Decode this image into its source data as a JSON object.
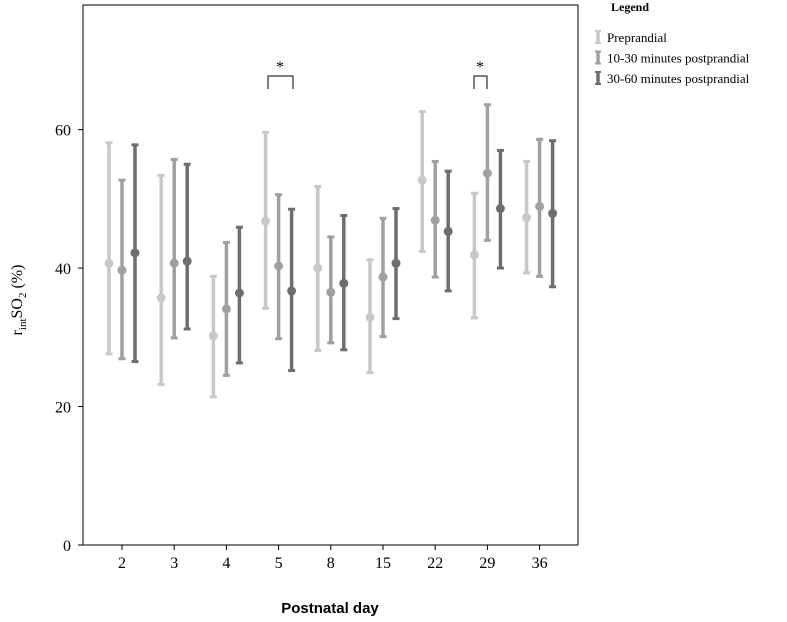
{
  "chart_data": {
    "type": "errorbar",
    "xlabel": "Postnatal day",
    "ylabel": [
      "r",
      "int",
      "SO",
      "2",
      " (%)"
    ],
    "categories": [
      "2",
      "3",
      "4",
      "5",
      "8",
      "15",
      "22",
      "29",
      "36"
    ],
    "ylim": [
      0,
      78
    ],
    "yticks": [
      0,
      20,
      40,
      60
    ],
    "grid": false,
    "legend_title": "Legend",
    "legend_position": "outside-top-right",
    "annotations": [
      "*",
      "*"
    ],
    "series": [
      {
        "name": "Preprandial",
        "color": "#c8c8c8",
        "values": [
          40.7,
          35.7,
          30.2,
          46.8,
          40.0,
          32.9,
          52.7,
          41.9,
          47.3
        ],
        "lower": [
          27.6,
          23.2,
          21.4,
          34.2,
          28.1,
          24.9,
          42.4,
          32.8,
          39.3
        ],
        "upper": [
          58.1,
          53.4,
          38.8,
          59.6,
          51.8,
          41.2,
          62.6,
          50.8,
          55.4
        ]
      },
      {
        "name": "10-30 minutes postprandial",
        "color": "#a0a0a0",
        "values": [
          39.7,
          40.7,
          34.1,
          40.3,
          36.5,
          38.7,
          46.9,
          53.7,
          48.9
        ],
        "lower": [
          26.9,
          29.9,
          24.5,
          29.8,
          29.2,
          30.1,
          38.7,
          44.0,
          38.8
        ],
        "upper": [
          52.7,
          55.7,
          43.7,
          50.6,
          44.5,
          47.2,
          55.4,
          63.6,
          58.6
        ]
      },
      {
        "name": "30-60 minutes postprandial",
        "color": "#6e6e6e",
        "values": [
          42.2,
          41.0,
          36.4,
          36.7,
          37.8,
          40.7,
          45.3,
          48.6,
          47.9
        ],
        "lower": [
          26.5,
          31.2,
          26.3,
          25.2,
          28.2,
          32.7,
          36.7,
          40.0,
          37.3
        ],
        "upper": [
          57.8,
          55.0,
          45.9,
          48.5,
          47.6,
          48.6,
          54.0,
          57.0,
          58.4
        ]
      }
    ]
  }
}
